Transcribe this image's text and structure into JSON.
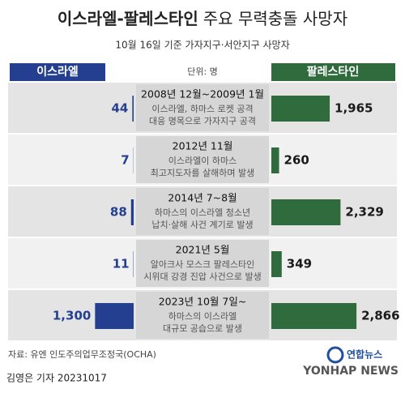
{
  "chart_data": {
    "type": "butterfly",
    "title": "이스라엘-팔레스타인",
    "title_rest": "주요 무력충돌 사망자",
    "subtitle": "10월 16일 기준 가자지구·서안지구 사망자",
    "unit": "단위: 명",
    "categories": [
      "2008년 12월~2009년 1월",
      "2012년 11월",
      "2014년 7~8월",
      "2021년 5월",
      "2023년 10월 7일~"
    ],
    "descriptions": [
      [
        "이스라엘, 하마스 로켓 공격",
        "대응 명목으로 가자지구 공격"
      ],
      [
        "이스라엘이 하마스",
        "최고지도자를 살해하며 발생"
      ],
      [
        "하마스의 이스라엘 청소년",
        "납치·살해 사건 계기로 발생"
      ],
      [
        "알아크사 모스크 팔레스타인",
        "시위대 강경 진압 사건으로 발생"
      ],
      [
        "하마스의 이스라엘",
        "대규모 공습으로 발생"
      ]
    ],
    "series": [
      {
        "name": "이스라엘",
        "color": "#243f8f",
        "values": [
          44,
          7,
          88,
          11,
          1300
        ],
        "value_labels": [
          "44",
          "7",
          "88",
          "11",
          "1,300"
        ]
      },
      {
        "name": "팔레스타인",
        "color": "#2f6b3c",
        "values": [
          1965,
          260,
          2329,
          349,
          2866
        ],
        "value_labels": [
          "1,965",
          "260",
          "2,329",
          "349",
          "2,866"
        ]
      }
    ],
    "xlim": [
      0,
      3000
    ],
    "source": "자료: 유엔 인도주의업무조정국(OCHA)",
    "credit": "김영은 기자  20231017",
    "logo": "연합뉴스",
    "logo_en": "YONHAP NEWS"
  }
}
